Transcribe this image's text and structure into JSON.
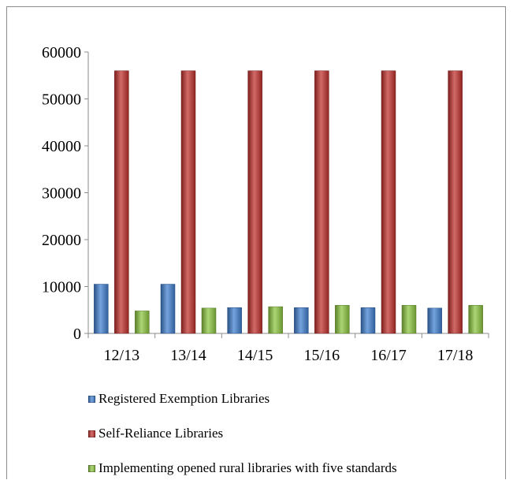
{
  "chart_data": {
    "type": "bar",
    "title": "",
    "xlabel": "",
    "ylabel": "",
    "categories": [
      "12/13",
      "13/14",
      "14/15",
      "15/16",
      "16/17",
      "17/18"
    ],
    "ylim": [
      0,
      60000
    ],
    "yticks": [
      "0",
      "10000",
      "20000",
      "30000",
      "40000",
      "50000",
      "60000"
    ],
    "grid": false,
    "legend_position": "bottom",
    "series": [
      {
        "name": "Registered Exemption Libraries",
        "color": "#3f7fd0",
        "values": [
          10500,
          10500,
          5500,
          5500,
          5500,
          5400
        ]
      },
      {
        "name": "Self-Reliance Libraries",
        "color": "#c0302c",
        "values": [
          56000,
          56000,
          56000,
          56000,
          56000,
          56000
        ]
      },
      {
        "name": "Implementing opened rural libraries with five standards",
        "color": "#8cc63f",
        "values": [
          4800,
          5400,
          5700,
          6000,
          6000,
          6000
        ]
      }
    ]
  }
}
